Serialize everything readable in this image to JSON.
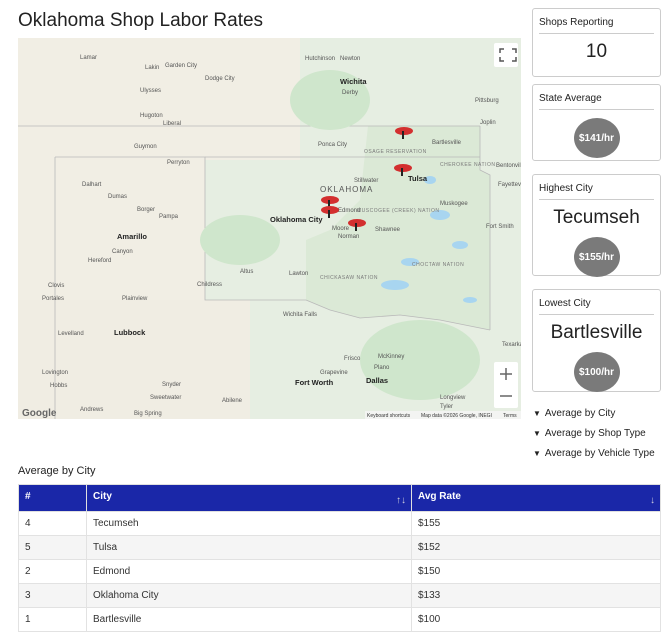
{
  "header": {
    "title": "Oklahoma Shop Labor Rates"
  },
  "map": {
    "places": [
      "Lamar",
      "Lakin",
      "Garden City",
      "Dodge City",
      "Hutchinson",
      "Newton",
      "Wichita",
      "Derby",
      "Ulysses",
      "Hugoton",
      "Liberal",
      "Pittsburg",
      "Joplin",
      "Guymon",
      "Perryton",
      "Ponca City",
      "Bartlesville",
      "Tulsa",
      "Stillwater",
      "Dalhart",
      "Dumas",
      "Borger",
      "Pampa",
      "Edmond",
      "Oklahoma City",
      "Muskogee",
      "Moore",
      "Norman",
      "Shawnee",
      "Amarillo",
      "Canyon",
      "Hereford",
      "Altus",
      "Lawton",
      "Childress",
      "Clovis",
      "Portales",
      "Plainview",
      "Wichita Falls",
      "Levelland",
      "Lubbock",
      "Frisco",
      "McKinney",
      "Plano",
      "Grapevine",
      "Fort Worth",
      "Dallas",
      "Lovington",
      "Hobbs",
      "Snyder",
      "Sweetwater",
      "Abilene",
      "Andrews",
      "Big Spring",
      "Longview",
      "Tyler",
      "Fort Smith",
      "Fayetteville",
      "Bentonville",
      "Texarkana"
    ],
    "state": "OKLAHOMA",
    "regions": [
      "OSAGE RESERVATION",
      "CHEROKEE NATION",
      "MUSCOGEE (CREEK) NATION",
      "CHICKASAW NATION",
      "CHOCTAW NATION"
    ],
    "logo": "Google",
    "footer": [
      "Keyboard shortcuts",
      "Map data ©2026 Google, INEGI",
      "Terms"
    ]
  },
  "cards": [
    {
      "title": "Shops Reporting",
      "value": "10"
    },
    {
      "title": "State Average",
      "badge": "$141/hr"
    },
    {
      "title": "Highest City",
      "value": "Tecumseh",
      "badge": "$155/hr"
    },
    {
      "title": "Lowest City",
      "value": "Bartlesville",
      "badge": "$100/hr"
    }
  ],
  "toggles": [
    "Average by City",
    "Average by Shop Type",
    "Average by Vehicle Type"
  ],
  "table": {
    "title": "Average by City",
    "columns": [
      "#",
      "City",
      "Avg Rate"
    ],
    "rows": [
      [
        "4",
        "Tecumseh",
        "$155"
      ],
      [
        "5",
        "Tulsa",
        "$152"
      ],
      [
        "2",
        "Edmond",
        "$150"
      ],
      [
        "3",
        "Oklahoma City",
        "$133"
      ],
      [
        "1",
        "Bartlesville",
        "$100"
      ]
    ]
  }
}
